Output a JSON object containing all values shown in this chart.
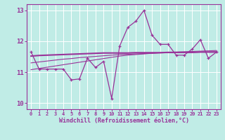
{
  "xlabel": "Windchill (Refroidissement éolien,°C)",
  "bg_color": "#c0ece6",
  "line_color": "#993399",
  "grid_color": "#b0ddd8",
  "ylim": [
    9.8,
    13.2
  ],
  "xlim": [
    -0.5,
    23.5
  ],
  "yticks": [
    10,
    11,
    12,
    13
  ],
  "xticks": [
    0,
    1,
    2,
    3,
    4,
    5,
    6,
    7,
    8,
    9,
    10,
    11,
    12,
    13,
    14,
    15,
    16,
    17,
    18,
    19,
    20,
    21,
    22,
    23
  ],
  "x": [
    0,
    1,
    2,
    3,
    4,
    5,
    6,
    7,
    8,
    9,
    10,
    11,
    12,
    13,
    14,
    15,
    16,
    17,
    18,
    19,
    20,
    21,
    22,
    23
  ],
  "y_main": [
    11.65,
    11.1,
    11.1,
    11.1,
    11.1,
    10.75,
    10.78,
    11.45,
    11.15,
    11.35,
    10.15,
    11.85,
    12.45,
    12.65,
    13.0,
    12.2,
    11.9,
    11.9,
    11.55,
    11.55,
    11.75,
    12.05,
    11.45,
    11.65
  ],
  "y_trend1": [
    11.08,
    11.12,
    11.16,
    11.2,
    11.24,
    11.28,
    11.32,
    11.36,
    11.4,
    11.44,
    11.48,
    11.52,
    11.55,
    11.57,
    11.59,
    11.61,
    11.63,
    11.64,
    11.65,
    11.66,
    11.67,
    11.68,
    11.69,
    11.7
  ],
  "y_trend2": [
    11.3,
    11.33,
    11.36,
    11.39,
    11.42,
    11.44,
    11.47,
    11.49,
    11.51,
    11.53,
    11.55,
    11.57,
    11.58,
    11.59,
    11.6,
    11.61,
    11.62,
    11.63,
    11.63,
    11.64,
    11.64,
    11.65,
    11.65,
    11.66
  ],
  "y_trend3": [
    11.52,
    11.54,
    11.55,
    11.56,
    11.57,
    11.58,
    11.59,
    11.6,
    11.61,
    11.62,
    11.62,
    11.62,
    11.62,
    11.63,
    11.63,
    11.63,
    11.63,
    11.64,
    11.64,
    11.64,
    11.64,
    11.65,
    11.65,
    11.65
  ]
}
